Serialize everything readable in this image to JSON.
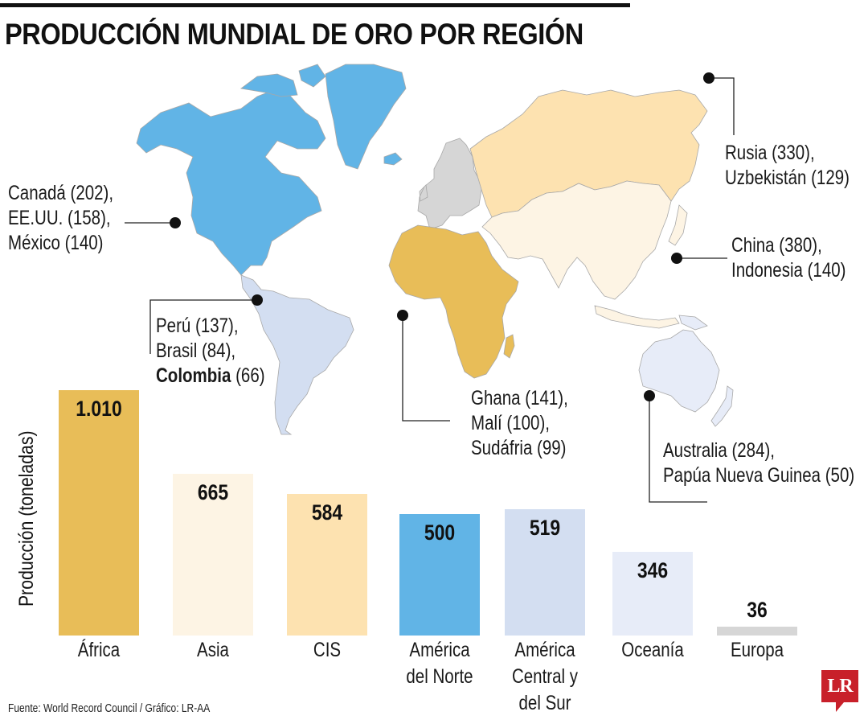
{
  "title": "PRODUCCIÓN MUNDIAL DE ORO POR REGIÓN",
  "colors": {
    "africa": "#e8bd58",
    "asia": "#fdf4e4",
    "cis": "#fde2b0",
    "north_america": "#61b4e6",
    "central_south_america": "#d3def1",
    "oceania": "#e7ecf8",
    "europe": "#d6d6d6"
  },
  "map_labels": {
    "north_america": [
      "Canadá (202),",
      "EE.UU. (158),",
      "México (140)"
    ],
    "south_america": {
      "line1": "Perú (137),",
      "line2": "Brasil (84),",
      "line3_bold": "Colombia",
      "line3_rest": " (66)"
    },
    "cis": [
      "Rusia (330),",
      "Uzbekistán (129)"
    ],
    "asia": [
      "China (380),",
      "Indonesia (140)"
    ],
    "africa": [
      "Ghana (141),",
      "Malí (100),",
      "Sudáfria (99)"
    ],
    "oceania": [
      "Australia (284),",
      "Papúa Nueva Guinea (50)"
    ]
  },
  "chart_data": {
    "type": "bar",
    "title": "PRODUCCIÓN MUNDIAL DE ORO POR REGIÓN",
    "xlabel": "",
    "ylabel": "Producción (toneladas)",
    "categories": [
      "África",
      "Asia",
      "CIS",
      "América del Norte",
      "América Central y del Sur",
      "Oceanía",
      "Europa"
    ],
    "values": [
      1010,
      665,
      584,
      500,
      519,
      346,
      36
    ],
    "value_labels": [
      "1.010",
      "665",
      "584",
      "500",
      "519",
      "346",
      "36"
    ],
    "category_lines": [
      [
        "África"
      ],
      [
        "Asia"
      ],
      [
        "CIS"
      ],
      [
        "América",
        "del Norte"
      ],
      [
        "América",
        "Central y",
        "del Sur"
      ],
      [
        "Oceanía"
      ],
      [
        "Europa"
      ]
    ],
    "bar_colors": [
      "#e8bd58",
      "#fdf4e4",
      "#fde2b0",
      "#61b4e6",
      "#d3def1",
      "#e7ecf8",
      "#d6d6d6"
    ],
    "grid": false,
    "legend": "none",
    "ylim": [
      0,
      1010
    ]
  },
  "footer": {
    "source": "Fuente: World Record Council / Gráfico: LR-AA",
    "logo": "LR"
  }
}
